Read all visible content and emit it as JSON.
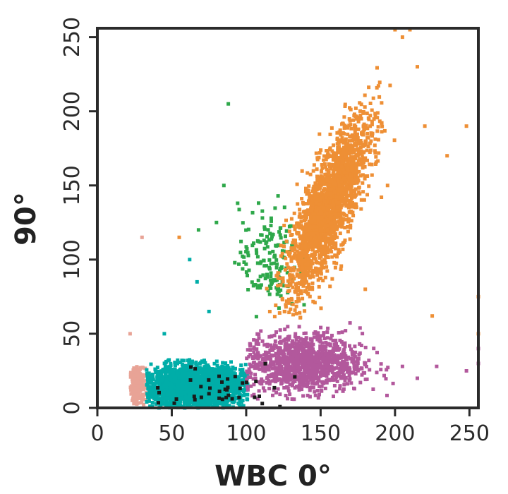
{
  "chart_data": {
    "type": "scatter",
    "title": "",
    "xlabel": "WBC 0°",
    "ylabel": "90°",
    "xlim": [
      0,
      256
    ],
    "ylim": [
      0,
      256
    ],
    "x_ticks": [
      0,
      50,
      100,
      150,
      200,
      250
    ],
    "y_ticks": [
      0,
      50,
      100,
      150,
      200,
      250
    ],
    "x_tick_labels": [
      "0",
      "50",
      "100",
      "150",
      "200",
      "250"
    ],
    "y_tick_labels": [
      "0",
      "50",
      "100",
      "150",
      "200",
      "250"
    ],
    "grid": false,
    "legend": "none",
    "series": [
      {
        "color": "#E8A396",
        "cx": 27,
        "cy": 15,
        "sx": 2.5,
        "sy": 6,
        "count": 220,
        "xmin": 22,
        "xmax": 33,
        "ymin": 0,
        "ymax": 32
      },
      {
        "color": "#00ADA8",
        "cx": 65,
        "cy": 14,
        "sx": 17,
        "sy": 7,
        "count": 2400,
        "xmin": 33,
        "xmax": 101,
        "ymin": 0,
        "ymax": 33
      },
      {
        "color": "#B2589C",
        "cx": 138,
        "cy": 30,
        "sx": 20,
        "sy": 10,
        "count": 1100,
        "xmin": 100,
        "xmax": 200,
        "ymin": 5,
        "ymax": 60
      },
      {
        "color": "#2EA84A",
        "cx": 115,
        "cy": 100,
        "sx": 10,
        "sy": 18,
        "count": 160,
        "xmin": 80,
        "xmax": 145,
        "ymin": 60,
        "ymax": 150
      },
      {
        "color": "#EE8F35",
        "cx": 155,
        "cy": 135,
        "sx": 14,
        "sy": 30,
        "count": 2000,
        "corr": 0.8,
        "xmin": 95,
        "xmax": 200,
        "ymin": 60,
        "ymax": 256
      },
      {
        "color": "#1a1a1a",
        "cx": 80,
        "cy": 12,
        "sx": 25,
        "sy": 10,
        "count": 40,
        "xmin": 40,
        "xmax": 140,
        "ymin": 0,
        "ymax": 35
      }
    ],
    "outliers": [
      {
        "color": "#EE8F35",
        "points": [
          [
            210,
            255
          ],
          [
            200,
            255
          ],
          [
            215,
            230
          ],
          [
            220,
            190
          ],
          [
            235,
            170
          ],
          [
            248,
            190
          ],
          [
            225,
            62
          ],
          [
            256,
            75
          ],
          [
            256,
            50
          ],
          [
            55,
            115
          ],
          [
            180,
            80
          ],
          [
            205,
            250
          ],
          [
            195,
            150
          ]
        ]
      },
      {
        "color": "#B2589C",
        "points": [
          [
            228,
            28
          ],
          [
            248,
            25
          ],
          [
            256,
            40
          ],
          [
            256,
            30
          ],
          [
            205,
            28
          ],
          [
            215,
            20
          ]
        ]
      },
      {
        "color": "#2EA84A",
        "points": [
          [
            88,
            205
          ],
          [
            85,
            150
          ],
          [
            68,
            120
          ],
          [
            80,
            125
          ]
        ]
      },
      {
        "color": "#E8A396",
        "points": [
          [
            30,
            115
          ],
          [
            22,
            50
          ]
        ]
      },
      {
        "color": "#00ADA8",
        "points": [
          [
            75,
            65
          ],
          [
            62,
            100
          ],
          [
            67,
            85
          ],
          [
            45,
            50
          ]
        ]
      }
    ]
  }
}
